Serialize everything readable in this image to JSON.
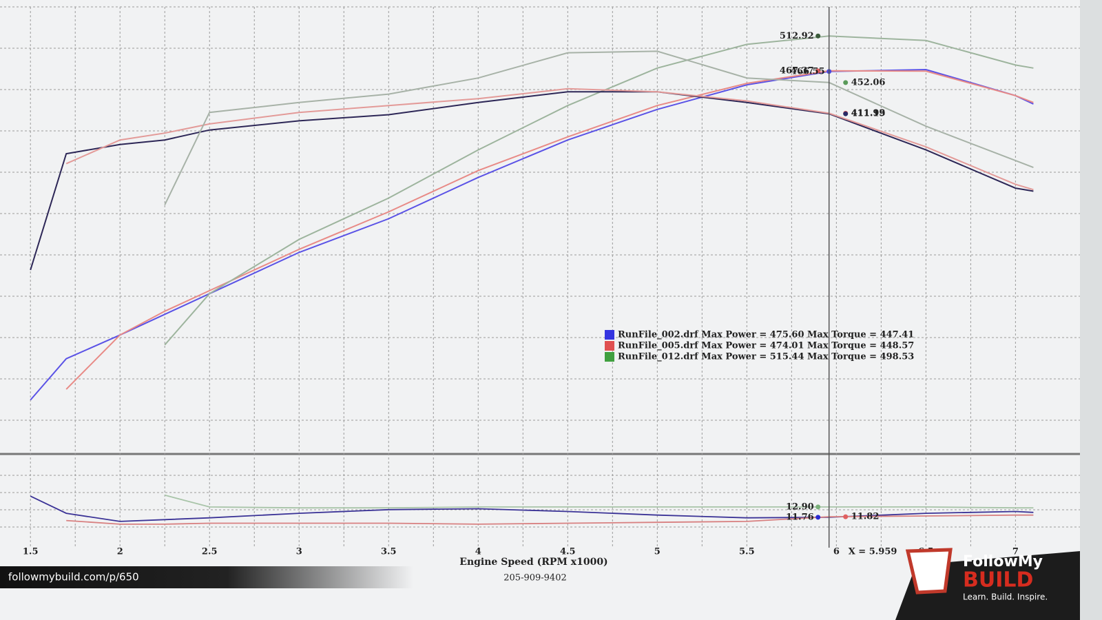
{
  "chart_data": [
    {
      "type": "line",
      "x": [
        1.5,
        1.7,
        2.0,
        2.25,
        2.5,
        3.0,
        3.5,
        4.0,
        4.5,
        5.0,
        5.5,
        5.959,
        6.5,
        7.0,
        7.1
      ],
      "xlim": [
        1.33,
        7.36
      ],
      "xticks": [
        1.5,
        2.0,
        2.5,
        3.0,
        3.5,
        4.0,
        4.5,
        5.0,
        5.5,
        6.0,
        6.5,
        7.0
      ],
      "xlabel": "Engine Speed (RPM x1000)",
      "ylim": [
        -30,
        551
      ],
      "grid": true,
      "series": [
        {
          "color": "#5a52e6",
          "values": [
            37,
            91,
            122,
            149,
            176,
            230,
            274,
            328,
            377,
            417,
            449,
            466.55,
            469,
            435,
            424
          ]
        },
        {
          "color": "#e88a86",
          "values": [
            null,
            51,
            122,
            153,
            180,
            234,
            283,
            337,
            381,
            422,
            451,
            467.37,
            467,
            435,
            426
          ]
        },
        {
          "color": "#9db49d",
          "values": [
            null,
            null,
            null,
            109,
            176,
            247,
            301,
            364,
            422,
            471,
            502,
            512.92,
            507,
            475,
            471
          ]
        },
        {
          "color": "#2c2656",
          "values": [
            207,
            359,
            371,
            377,
            390,
            402,
            410,
            426,
            440,
            440,
            426,
            411.19,
            364,
            314,
            310
          ]
        },
        {
          "color": "#e39a98",
          "values": [
            null,
            346,
            377,
            386,
            398,
            413,
            422,
            431,
            444,
            440,
            428,
            411.93,
            368,
            319,
            312
          ]
        },
        {
          "color": "#a7b2a7",
          "values": [
            null,
            null,
            null,
            292,
            413,
            426,
            437,
            458,
            491,
            493,
            458,
            452.06,
            395,
            350,
            341
          ]
        }
      ],
      "annotations": [
        {
          "value": 512.92,
          "color": "#3a5a3a"
        },
        {
          "value": 467.37,
          "color": "#e06060"
        },
        {
          "value": 466.55,
          "color": "#4a4ae0"
        },
        {
          "value": 452.06,
          "color": "#5a9a5a"
        },
        {
          "value": 411.93,
          "color": "#e06060"
        },
        {
          "value": 411.19,
          "color": "#2a2a66"
        }
      ],
      "legend": [
        {
          "color": "#3535e0",
          "label": "RunFile_002.drf Max Power = 475.60 Max Torque = 447.41"
        },
        {
          "color": "#e05050",
          "label": "RunFile_005.drf Max Power = 474.01 Max Torque = 448.57"
        },
        {
          "color": "#40a040",
          "label": "RunFile_012.drf Max Power = 515.44 Max Torque = 498.53"
        }
      ],
      "cursor": {
        "value": 5.959,
        "label": "X = 5.959"
      },
      "footer": "205-909-9402"
    },
    {
      "type": "line",
      "x": [
        1.5,
        1.7,
        2.0,
        2.25,
        2.5,
        3.0,
        3.5,
        4.0,
        4.5,
        5.0,
        5.5,
        5.959,
        6.5,
        7.0,
        7.1
      ],
      "xlim": [
        1.33,
        7.36
      ],
      "ylim": [
        8.4,
        18.3
      ],
      "series": [
        {
          "color": "#3a3296",
          "values": [
            14.1,
            12.2,
            11.3,
            11.5,
            11.7,
            12.2,
            12.6,
            12.7,
            12.4,
            12.0,
            11.7,
            11.76,
            12.2,
            12.4,
            12.3
          ]
        },
        {
          "color": "#d88080",
          "values": [
            null,
            11.4,
            11.0,
            11.0,
            11.1,
            11.1,
            11.1,
            11.0,
            11.1,
            11.2,
            11.3,
            11.82,
            11.9,
            12.0,
            12.0
          ]
        },
        {
          "color": "#a8c4a8",
          "values": [
            null,
            null,
            null,
            14.2,
            12.9,
            12.8,
            12.8,
            12.9,
            12.9,
            12.9,
            12.9,
            12.9,
            12.9,
            12.8,
            12.8
          ]
        }
      ],
      "annotations": [
        {
          "value": {
            "value": 12.9,
            "label": "12.90"
          },
          "color": "#7ab07a"
        },
        {
          "value": 11.76,
          "color": "#2a2ad0"
        },
        {
          "value": 11.82,
          "color": "#e06060"
        }
      ]
    }
  ],
  "watermark": {
    "url": "followmybuild.com/p/650",
    "brand_top": "FollowMy",
    "brand_bottom": "BUILD",
    "tagline": "Learn. Build. Inspire."
  }
}
